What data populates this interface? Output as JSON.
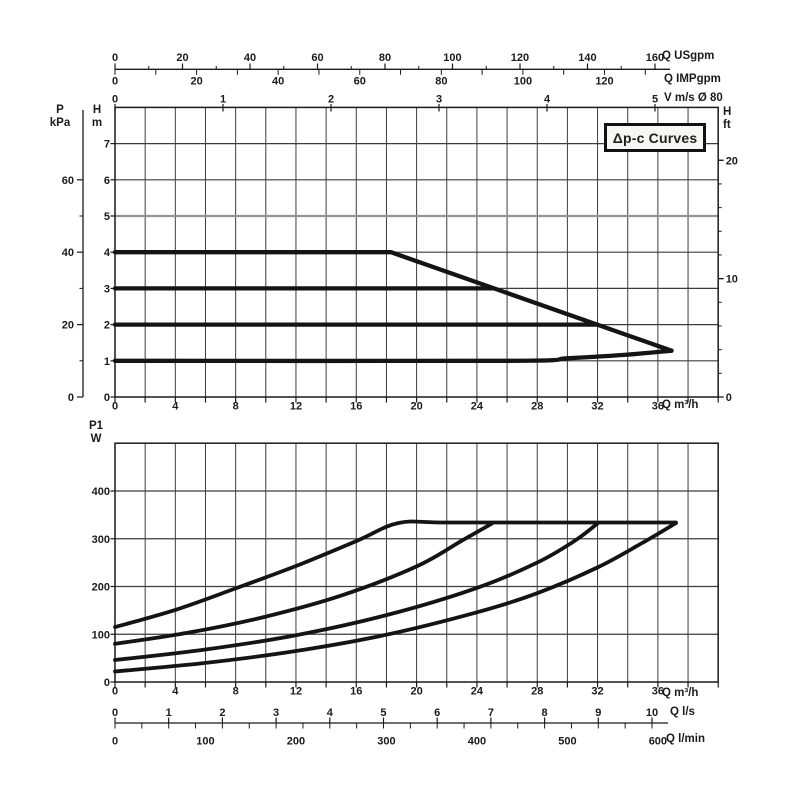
{
  "page": {
    "background": "#ffffff"
  },
  "badge": {
    "label": "Δp-c Curves"
  },
  "axis_titles": {
    "pressure_kpa": [
      "P",
      "kPa"
    ],
    "head_m": [
      "H",
      "m"
    ],
    "head_ft": [
      "H",
      "ft"
    ],
    "power_w": [
      "P1",
      "W"
    ]
  },
  "unit_labels": {
    "usgpm": "Q USgpm",
    "impgpm": "Q IMPgpm",
    "velocity": "V m/s Ø 80",
    "m3h_top": "Q m³/h",
    "m3h_bottom": "Q m³/h",
    "ls": "Q l/s",
    "lmin": "Q l/min"
  },
  "colors": {
    "curve": "#141414",
    "grid": "#3d3d3d",
    "grid_soft": "#949494",
    "frame": "#1a1a1a",
    "text": "#1b1b1b",
    "badge_bg": "#f6f6f4"
  },
  "chart_data": [
    {
      "id": "head-flow-chart",
      "type": "line",
      "title": "Δp-c Curves",
      "xlabel": "Q m³/h",
      "ylabel": "H m",
      "xlim": [
        0,
        40
      ],
      "ylim": [
        0,
        8
      ],
      "x_tick_labels": [
        0,
        4,
        8,
        12,
        16,
        20,
        24,
        28,
        32,
        36
      ],
      "x_minor_step": 2,
      "y_tick_labels": [
        0,
        1,
        2,
        3,
        4,
        5,
        6,
        7
      ],
      "soft_gridline_at_h": 5,
      "secondary_y_left": {
        "unit": "kPa",
        "ticks": [
          0,
          20,
          40,
          60
        ],
        "minor_step": 10,
        "m_per_unit": 0.1
      },
      "secondary_y_right": {
        "unit": "ft",
        "ticks": [
          0,
          10,
          20
        ],
        "minor_step": 2,
        "m_per_unit": 0.327
      },
      "secondary_x_top": [
        {
          "unit": "Q USgpm",
          "ticks": [
            0,
            20,
            40,
            60,
            80,
            100,
            120,
            140,
            160
          ],
          "minor_step": 10,
          "m3h_per_unit": 0.2238
        },
        {
          "unit": "Q IMPgpm",
          "ticks": [
            0,
            20,
            40,
            60,
            80,
            100,
            120
          ],
          "minor_step": 10,
          "m3h_per_unit": 0.2705
        },
        {
          "unit": "V m/s Ø 80",
          "ticks": [
            0,
            1,
            2,
            3,
            4,
            5
          ],
          "m3h_per_unit": 7.162
        }
      ],
      "series": [
        {
          "name": "dp-c setpoint 4 m",
          "smooth": false,
          "points": [
            [
              0,
              4
            ],
            [
              18.3,
              4
            ],
            [
              36.9,
              1.28
            ]
          ]
        },
        {
          "name": "dp-c setpoint 3 m",
          "smooth": false,
          "points": [
            [
              0,
              3
            ],
            [
              25.1,
              3
            ]
          ]
        },
        {
          "name": "dp-c setpoint 2 m",
          "smooth": false,
          "points": [
            [
              0,
              2
            ],
            [
              32,
              2
            ]
          ]
        },
        {
          "name": "dp-c setpoint 1 m",
          "smooth": true,
          "points": [
            [
              0,
              1
            ],
            [
              26,
              1
            ],
            [
              30,
              1.07
            ],
            [
              34,
              1.17
            ],
            [
              36.9,
              1.28
            ]
          ]
        }
      ]
    },
    {
      "id": "power-flow-chart",
      "type": "line",
      "title": "",
      "xlabel": "Q m³/h",
      "ylabel": "P1 W",
      "xlim": [
        0,
        40
      ],
      "ylim": [
        0,
        500
      ],
      "x_tick_labels": [
        0,
        4,
        8,
        12,
        16,
        20,
        24,
        28,
        32,
        36
      ],
      "x_minor_step": 2,
      "y_tick_labels": [
        0,
        100,
        200,
        300,
        400
      ],
      "secondary_x_bottom": [
        {
          "unit": "Q l/s",
          "ticks": [
            0,
            1,
            2,
            3,
            4,
            5,
            6,
            7,
            8,
            9,
            10
          ],
          "minor_step": 0.5,
          "m3h_per_unit": 3.561
        },
        {
          "unit": "Q l/min",
          "ticks": [
            0,
            100,
            200,
            300,
            400,
            500,
            600
          ],
          "m3h_per_unit": 0.06
        }
      ],
      "series": [
        {
          "name": "P1 at dp-c 4 m",
          "smooth": true,
          "points": [
            [
              0,
              115
            ],
            [
              4,
              151
            ],
            [
              8,
              196
            ],
            [
              12,
              243
            ],
            [
              16,
              295
            ],
            [
              18.8,
              333
            ],
            [
              22,
              334
            ],
            [
              30,
              334
            ],
            [
              37.2,
              334
            ]
          ]
        },
        {
          "name": "P1 at dp-c 3 m",
          "smooth": true,
          "points": [
            [
              0,
              80
            ],
            [
              5,
              104
            ],
            [
              10,
              137
            ],
            [
              15,
              181
            ],
            [
              20,
              242
            ],
            [
              23,
              296
            ],
            [
              25,
              332
            ]
          ]
        },
        {
          "name": "P1 at dp-c 2 m",
          "smooth": true,
          "points": [
            [
              0,
              46
            ],
            [
              6,
              68
            ],
            [
              12,
              98
            ],
            [
              18,
              140
            ],
            [
              24,
              197
            ],
            [
              28,
              250
            ],
            [
              30.5,
              296
            ],
            [
              32,
              332
            ]
          ]
        },
        {
          "name": "P1 at dp-c 1 m",
          "smooth": true,
          "points": [
            [
              0,
              22
            ],
            [
              6,
              40
            ],
            [
              12,
              65
            ],
            [
              18,
              99
            ],
            [
              24,
              146
            ],
            [
              28,
              186
            ],
            [
              32,
              240
            ],
            [
              35,
              292
            ],
            [
              37.2,
              333
            ]
          ]
        }
      ]
    }
  ]
}
